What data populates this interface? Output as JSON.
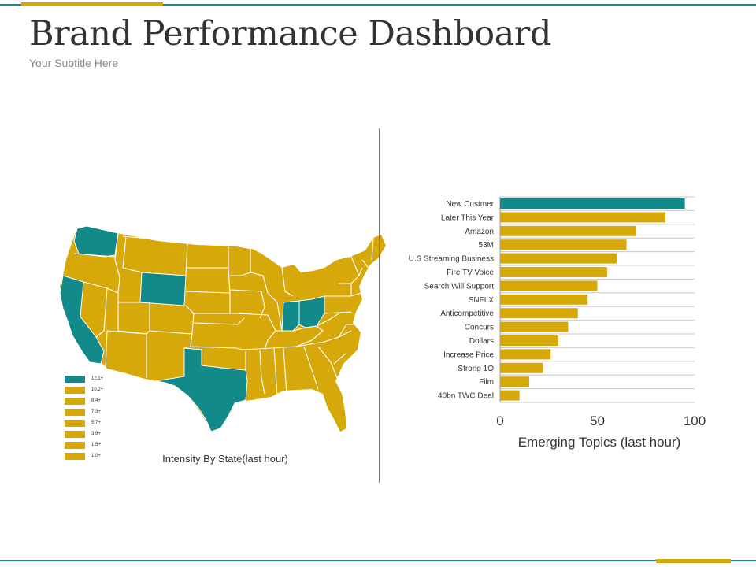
{
  "header": {
    "title": "Brand Performance Dashboard",
    "subtitle": "Your Subtitle Here"
  },
  "colors": {
    "teal": "#138a8a",
    "gold": "#d6a80a",
    "grid": "#c8c8c8",
    "text": "#333333"
  },
  "map": {
    "caption": "Intensity By State(last hour)",
    "highlighted_states": [
      "Washington",
      "Wyoming",
      "California",
      "Texas",
      "Indiana",
      "Ohio"
    ],
    "legend": [
      {
        "label": "12.1+",
        "color": "#138a8a"
      },
      {
        "label": "10.2+",
        "color": "#d6a80a"
      },
      {
        "label": "8.4+",
        "color": "#d6a80a"
      },
      {
        "label": "7.3+",
        "color": "#d6a80a"
      },
      {
        "label": "5.7+",
        "color": "#d6a80a"
      },
      {
        "label": "3.9+",
        "color": "#d6a80a"
      },
      {
        "label": "1.5+",
        "color": "#d6a80a"
      },
      {
        "label": "1.0+",
        "color": "#d6a80a"
      }
    ]
  },
  "chart_data": {
    "type": "bar",
    "orientation": "horizontal",
    "title": "",
    "xlabel": "Emerging Topics (last hour)",
    "ylabel": "",
    "xlim": [
      0,
      100
    ],
    "xticks": [
      0,
      50,
      100
    ],
    "grid": true,
    "categories": [
      "New Custmer",
      "Later This Year",
      "Amazon",
      "53M",
      "U.S Streaming Business",
      "Fire TV Voice",
      "Search Will Support",
      "SNFLX",
      "Anticompetitive",
      "Concurs",
      "Dollars",
      "Increase Price",
      "Strong 1Q",
      "Film",
      "40bn TWC Deal"
    ],
    "values": [
      95,
      85,
      70,
      65,
      60,
      55,
      50,
      45,
      40,
      35,
      30,
      26,
      22,
      15,
      10
    ],
    "highlight_index": 0
  }
}
